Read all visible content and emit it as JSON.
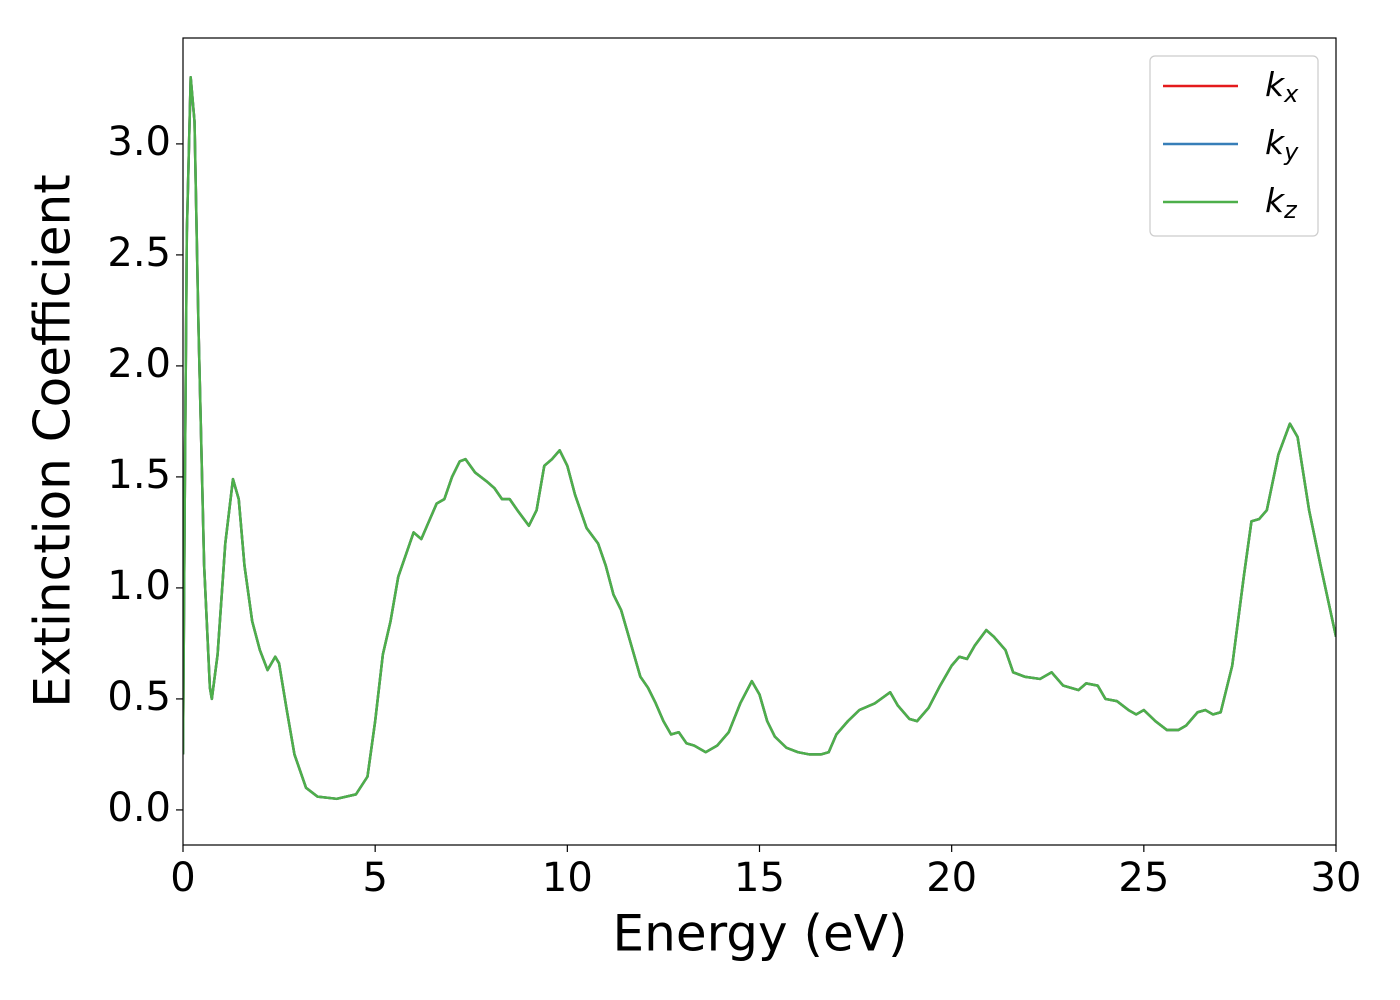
{
  "chart_data": {
    "type": "line",
    "xlabel": "Energy (eV)",
    "ylabel": "Extinction Coefficient",
    "xlim": [
      0,
      30
    ],
    "ylim": [
      -0.158,
      3.477
    ],
    "xticks": [
      0,
      5,
      10,
      15,
      20,
      25,
      30
    ],
    "yticks": [
      {
        "value": 0,
        "label": "0.0"
      },
      {
        "value": 0.5,
        "label": "0.5"
      },
      {
        "value": 1,
        "label": "1.0"
      },
      {
        "value": 1.5,
        "label": "1.5"
      },
      {
        "value": 2,
        "label": "2.0"
      },
      {
        "value": 2.5,
        "label": "2.5"
      },
      {
        "value": 3,
        "label": "3.0"
      }
    ],
    "legend": "upper right",
    "grid": false,
    "x": [
      0,
      0.05,
      0.1,
      0.2,
      0.3,
      0.4,
      0.55,
      0.7,
      0.75,
      0.9,
      1.1,
      1.3,
      1.45,
      1.6,
      1.8,
      2.0,
      2.2,
      2.4,
      2.5,
      2.7,
      2.9,
      3.2,
      3.5,
      4.0,
      4.5,
      4.8,
      5.0,
      5.2,
      5.4,
      5.6,
      5.9,
      6.0,
      6.2,
      6.4,
      6.6,
      6.8,
      7.0,
      7.2,
      7.35,
      7.6,
      7.9,
      8.1,
      8.3,
      8.5,
      8.7,
      9.0,
      9.2,
      9.4,
      9.6,
      9.8,
      10.0,
      10.2,
      10.5,
      10.8,
      11.0,
      11.2,
      11.4,
      11.6,
      11.9,
      12.1,
      12.3,
      12.5,
      12.7,
      12.9,
      13.1,
      13.3,
      13.6,
      13.9,
      14.2,
      14.5,
      14.8,
      15.0,
      15.2,
      15.4,
      15.7,
      16.0,
      16.3,
      16.6,
      16.8,
      17.0,
      17.3,
      17.6,
      18.0,
      18.4,
      18.6,
      18.9,
      19.1,
      19.4,
      19.7,
      20.0,
      20.2,
      20.4,
      20.6,
      20.9,
      21.1,
      21.4,
      21.6,
      21.9,
      22.3,
      22.6,
      22.9,
      23.3,
      23.5,
      23.8,
      24.0,
      24.3,
      24.6,
      24.8,
      25.0,
      25.3,
      25.6,
      25.9,
      26.1,
      26.4,
      26.6,
      26.8,
      27.0,
      27.3,
      27.6,
      27.8,
      28.0,
      28.2,
      28.5,
      28.8,
      29.0,
      29.3,
      29.6,
      30.0
    ],
    "series": [
      {
        "name": "k_x",
        "color": "#e41a1c",
        "values": [
          0.25,
          1.5,
          2.6,
          3.3,
          3.1,
          2.2,
          1.1,
          0.55,
          0.5,
          0.7,
          1.2,
          1.49,
          1.4,
          1.1,
          0.85,
          0.72,
          0.63,
          0.69,
          0.66,
          0.45,
          0.25,
          0.1,
          0.06,
          0.05,
          0.07,
          0.15,
          0.4,
          0.7,
          0.85,
          1.05,
          1.2,
          1.25,
          1.22,
          1.3,
          1.38,
          1.4,
          1.5,
          1.57,
          1.58,
          1.52,
          1.48,
          1.45,
          1.4,
          1.4,
          1.35,
          1.28,
          1.35,
          1.55,
          1.58,
          1.62,
          1.55,
          1.42,
          1.27,
          1.2,
          1.1,
          0.97,
          0.9,
          0.78,
          0.6,
          0.55,
          0.48,
          0.4,
          0.34,
          0.35,
          0.3,
          0.29,
          0.26,
          0.29,
          0.35,
          0.48,
          0.58,
          0.52,
          0.4,
          0.33,
          0.28,
          0.26,
          0.25,
          0.25,
          0.26,
          0.34,
          0.4,
          0.45,
          0.48,
          0.53,
          0.47,
          0.41,
          0.4,
          0.46,
          0.56,
          0.65,
          0.69,
          0.68,
          0.74,
          0.81,
          0.78,
          0.72,
          0.62,
          0.6,
          0.59,
          0.62,
          0.56,
          0.54,
          0.57,
          0.56,
          0.5,
          0.49,
          0.45,
          0.43,
          0.45,
          0.4,
          0.36,
          0.36,
          0.38,
          0.44,
          0.45,
          0.43,
          0.44,
          0.65,
          1.05,
          1.3,
          1.31,
          1.35,
          1.6,
          1.74,
          1.68,
          1.35,
          1.1,
          0.78
        ]
      },
      {
        "name": "k_y",
        "color": "#377eb8",
        "values": [
          0.25,
          1.5,
          2.6,
          3.3,
          3.1,
          2.2,
          1.1,
          0.55,
          0.5,
          0.7,
          1.2,
          1.49,
          1.4,
          1.1,
          0.85,
          0.72,
          0.63,
          0.69,
          0.66,
          0.45,
          0.25,
          0.1,
          0.06,
          0.05,
          0.07,
          0.15,
          0.4,
          0.7,
          0.85,
          1.05,
          1.2,
          1.25,
          1.22,
          1.3,
          1.38,
          1.4,
          1.5,
          1.57,
          1.58,
          1.52,
          1.48,
          1.45,
          1.4,
          1.4,
          1.35,
          1.28,
          1.35,
          1.55,
          1.58,
          1.62,
          1.55,
          1.42,
          1.27,
          1.2,
          1.1,
          0.97,
          0.9,
          0.78,
          0.6,
          0.55,
          0.48,
          0.4,
          0.34,
          0.35,
          0.3,
          0.29,
          0.26,
          0.29,
          0.35,
          0.48,
          0.58,
          0.52,
          0.4,
          0.33,
          0.28,
          0.26,
          0.25,
          0.25,
          0.26,
          0.34,
          0.4,
          0.45,
          0.48,
          0.53,
          0.47,
          0.41,
          0.4,
          0.46,
          0.56,
          0.65,
          0.69,
          0.68,
          0.74,
          0.81,
          0.78,
          0.72,
          0.62,
          0.6,
          0.59,
          0.62,
          0.56,
          0.54,
          0.57,
          0.56,
          0.5,
          0.49,
          0.45,
          0.43,
          0.45,
          0.4,
          0.36,
          0.36,
          0.38,
          0.44,
          0.45,
          0.43,
          0.44,
          0.65,
          1.05,
          1.3,
          1.31,
          1.35,
          1.6,
          1.74,
          1.68,
          1.35,
          1.1,
          0.78
        ]
      },
      {
        "name": "k_z",
        "color": "#4daf4a",
        "values": [
          0.25,
          1.5,
          2.6,
          3.3,
          3.1,
          2.2,
          1.1,
          0.55,
          0.5,
          0.7,
          1.2,
          1.49,
          1.4,
          1.1,
          0.85,
          0.72,
          0.63,
          0.69,
          0.66,
          0.45,
          0.25,
          0.1,
          0.06,
          0.05,
          0.07,
          0.15,
          0.4,
          0.7,
          0.85,
          1.05,
          1.2,
          1.25,
          1.22,
          1.3,
          1.38,
          1.4,
          1.5,
          1.57,
          1.58,
          1.52,
          1.48,
          1.45,
          1.4,
          1.4,
          1.35,
          1.28,
          1.35,
          1.55,
          1.58,
          1.62,
          1.55,
          1.42,
          1.27,
          1.2,
          1.1,
          0.97,
          0.9,
          0.78,
          0.6,
          0.55,
          0.48,
          0.4,
          0.34,
          0.35,
          0.3,
          0.29,
          0.26,
          0.29,
          0.35,
          0.48,
          0.58,
          0.52,
          0.4,
          0.33,
          0.28,
          0.26,
          0.25,
          0.25,
          0.26,
          0.34,
          0.4,
          0.45,
          0.48,
          0.53,
          0.47,
          0.41,
          0.4,
          0.46,
          0.56,
          0.65,
          0.69,
          0.68,
          0.74,
          0.81,
          0.78,
          0.72,
          0.62,
          0.6,
          0.59,
          0.62,
          0.56,
          0.54,
          0.57,
          0.56,
          0.5,
          0.49,
          0.45,
          0.43,
          0.45,
          0.4,
          0.36,
          0.36,
          0.38,
          0.44,
          0.45,
          0.43,
          0.44,
          0.65,
          1.05,
          1.3,
          1.31,
          1.35,
          1.6,
          1.74,
          1.68,
          1.35,
          1.1,
          0.78
        ]
      }
    ]
  }
}
